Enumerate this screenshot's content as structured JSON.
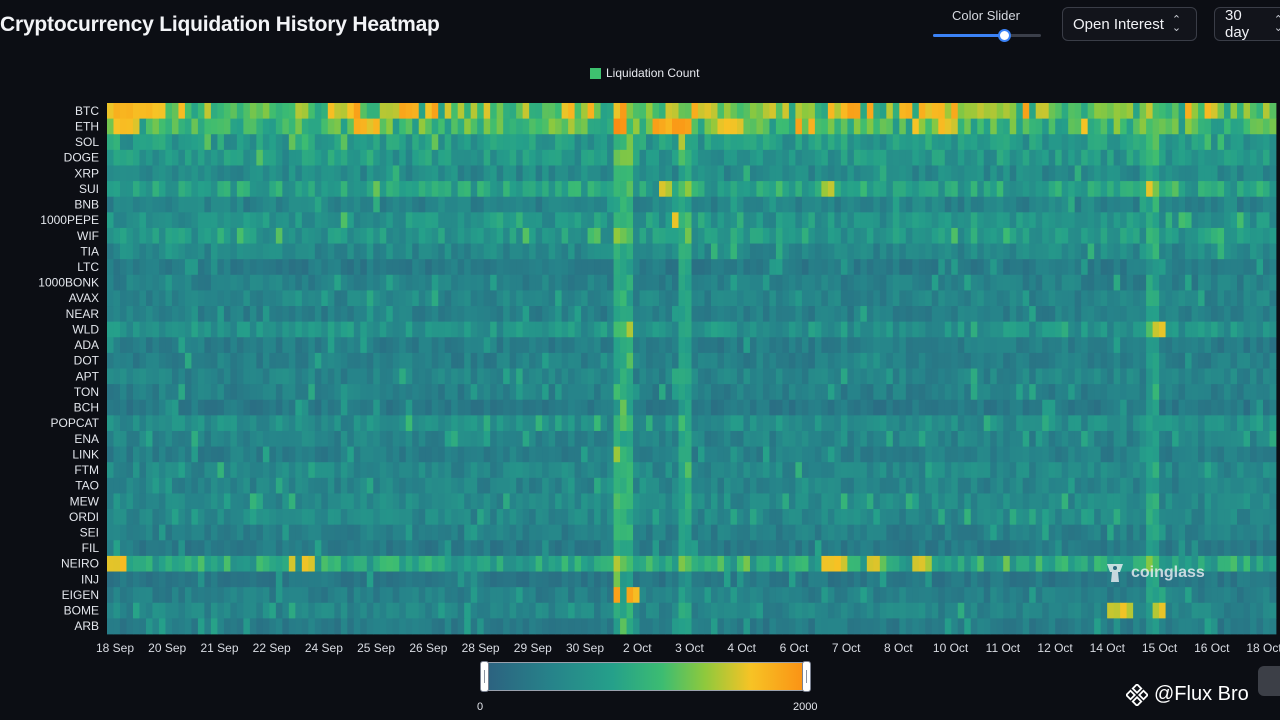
{
  "header": {
    "title": "Cryptocurrency Liquidation History Heatmap"
  },
  "controls": {
    "color_slider_label": "Color Slider",
    "color_slider_value": 0.66,
    "metric_select": "Open Interest",
    "range_select": "30 day"
  },
  "legend": {
    "label": "Liquidation Count",
    "color": "#3ec16f"
  },
  "colorbar": {
    "min_label": "0",
    "max_label": "2000"
  },
  "watermark": "coinglass",
  "credit": "@Flux Bro",
  "palette": [
    "#2d5f7f",
    "#26848a",
    "#25a08a",
    "#3cbc72",
    "#8ec93d",
    "#f7c325",
    "#fb8c12"
  ],
  "chart_data": {
    "type": "heatmap",
    "title": "Cryptocurrency Liquidation History Heatmap",
    "series_label": "Liquidation Count",
    "value_range": [
      0,
      2000
    ],
    "y_categories": [
      "BTC",
      "ETH",
      "SOL",
      "DOGE",
      "XRP",
      "SUI",
      "BNB",
      "1000PEPE",
      "WIF",
      "TIA",
      "LTC",
      "1000BONK",
      "AVAX",
      "NEAR",
      "WLD",
      "ADA",
      "DOT",
      "APT",
      "TON",
      "BCH",
      "POPCAT",
      "ENA",
      "LINK",
      "FTM",
      "TAO",
      "MEW",
      "ORDI",
      "SEI",
      "FIL",
      "NEIRO",
      "INJ",
      "EIGEN",
      "BOME",
      "ARB"
    ],
    "x_tick_labels": [
      "18 Sep",
      "20 Sep",
      "21 Sep",
      "22 Sep",
      "24 Sep",
      "25 Sep",
      "26 Sep",
      "28 Sep",
      "29 Sep",
      "30 Sep",
      "2 Oct",
      "3 Oct",
      "4 Oct",
      "6 Oct",
      "7 Oct",
      "8 Oct",
      "10 Oct",
      "11 Oct",
      "12 Oct",
      "14 Oct",
      "15 Oct",
      "16 Oct",
      "18 Oct"
    ],
    "x_period": "30 days in 4-hour bins (18 Sep - 18 Oct)",
    "base_levels": [
      1200,
      1050,
      650,
      600,
      450,
      750,
      380,
      560,
      600,
      430,
      270,
      340,
      380,
      320,
      550,
      300,
      330,
      380,
      330,
      250,
      480,
      380,
      320,
      420,
      380,
      440,
      420,
      330,
      260,
      820,
      240,
      320,
      400,
      280
    ],
    "hotspots": [
      {
        "coin": "BTC",
        "x": [
          0,
          12
        ],
        "value": 1850
      },
      {
        "coin": "BTC",
        "x": [
          34,
          38
        ],
        "value": 1950
      },
      {
        "coin": "BTC",
        "x": [
          45,
          53
        ],
        "value": 1900
      },
      {
        "coin": "BTC",
        "x": [
          57,
          60
        ],
        "value": 1800
      },
      {
        "coin": "BTC",
        "x": [
          70,
          75
        ],
        "value": 1850
      },
      {
        "coin": "BTC",
        "x": [
          90,
          94
        ],
        "value": 1800
      },
      {
        "coin": "BTC",
        "x": [
          110,
          115
        ],
        "value": 1900
      },
      {
        "coin": "BTC",
        "x": [
          122,
          128
        ],
        "value": 1850
      },
      {
        "coin": "ETH",
        "x": [
          0,
          6
        ],
        "value": 1750
      },
      {
        "coin": "ETH",
        "x": [
          38,
          41
        ],
        "value": 1800
      },
      {
        "coin": "ETH",
        "x": [
          84,
          89
        ],
        "value": 2000
      },
      {
        "coin": "ETH",
        "x": [
          94,
          97
        ],
        "value": 1900
      },
      {
        "coin": "ETH",
        "x": [
          106,
          108
        ],
        "value": 1950
      },
      {
        "coin": "ETH",
        "x": [
          128,
          130
        ],
        "value": 1800
      },
      {
        "coin": "SUI",
        "x": [
          84,
          86
        ],
        "value": 1650
      },
      {
        "coin": "SUI",
        "x": [
          110,
          112
        ],
        "value": 1600
      },
      {
        "coin": "SUI",
        "x": [
          160,
          162
        ],
        "value": 1750
      },
      {
        "coin": "1000PEPE",
        "x": [
          85,
          87
        ],
        "value": 1650
      },
      {
        "coin": "NEIRO",
        "x": [
          0,
          2
        ],
        "value": 1800
      },
      {
        "coin": "NEIRO",
        "x": [
          28,
          31
        ],
        "value": 1750
      },
      {
        "coin": "NEIRO",
        "x": [
          110,
          118
        ],
        "value": 1800
      },
      {
        "coin": "NEIRO",
        "x": [
          122,
          126
        ],
        "value": 1650
      },
      {
        "coin": "EIGEN",
        "x": [
          78,
          82
        ],
        "value": 1950
      },
      {
        "coin": "BOME",
        "x": [
          154,
          162
        ],
        "value": 1700
      },
      {
        "coin": "WLD",
        "x": [
          160,
          162
        ],
        "value": 1650
      }
    ],
    "column_bands": [
      {
        "x": [
          78,
          80
        ],
        "boost": 600
      },
      {
        "x": [
          88,
          89
        ],
        "boost": 450
      },
      {
        "x": [
          160,
          161
        ],
        "boost": 420
      }
    ]
  }
}
